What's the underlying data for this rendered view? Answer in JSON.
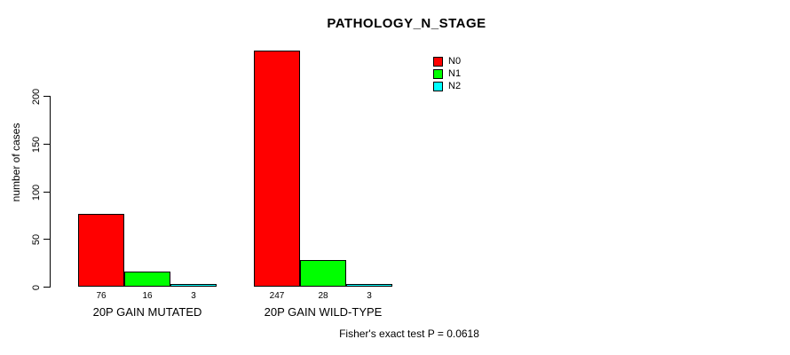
{
  "chart_data": {
    "type": "bar",
    "title": "PATHOLOGY_N_STAGE",
    "ylabel": "number of cases",
    "xlabel": "",
    "categories": [
      "20P GAIN MUTATED",
      "20P GAIN WILD-TYPE"
    ],
    "series": [
      {
        "name": "N0",
        "color": "#FF0000",
        "values": [
          76,
          247
        ]
      },
      {
        "name": "N1",
        "color": "#00FF00",
        "values": [
          16,
          28
        ]
      },
      {
        "name": "N2",
        "color": "#00FFFF",
        "values": [
          3,
          3
        ]
      }
    ],
    "y_ticks": [
      0,
      50,
      100,
      150,
      200
    ],
    "ylim": [
      0,
      250
    ],
    "grid": false,
    "legend_position": "top-right",
    "bar_value_labels": true,
    "annotation": "Fisher's exact test P = 0.0618"
  },
  "colors": {
    "axis": "#000000",
    "text": "#000000",
    "background": "#FFFFFF"
  }
}
